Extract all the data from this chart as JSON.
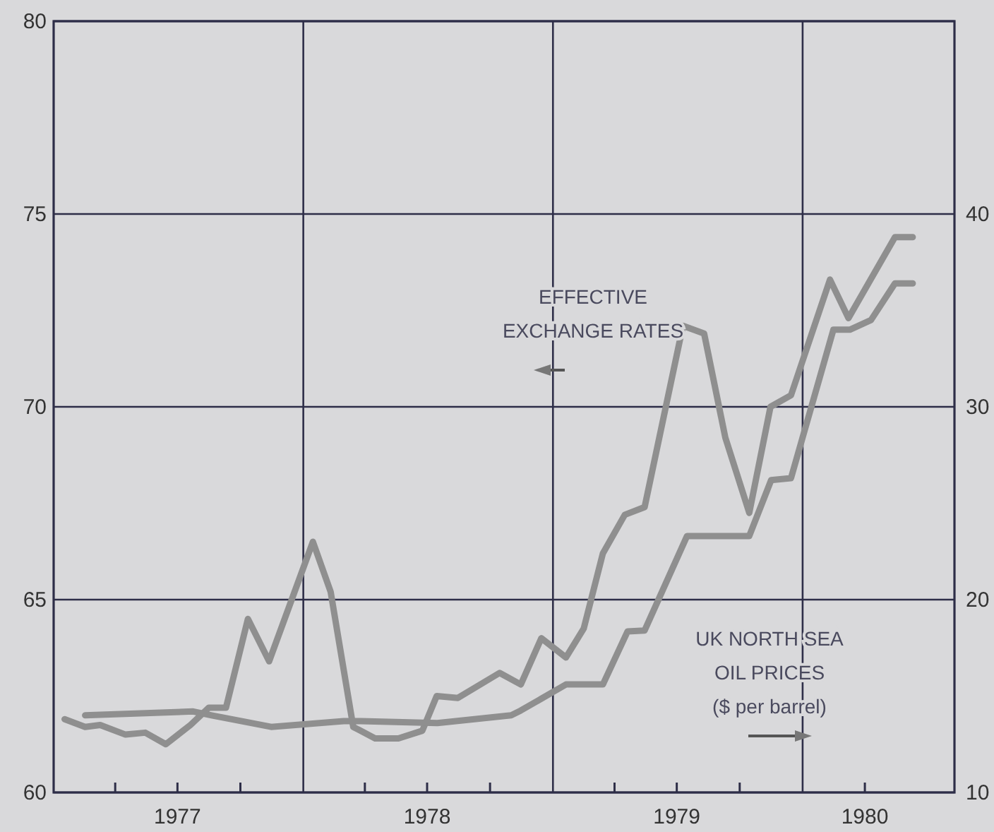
{
  "chart_data": {
    "type": "line",
    "series": [
      {
        "name": "EFFECTIVE\nEXCHANGE RATES",
        "color": "#8f8f8f",
        "axis": "y",
        "x": [
          "1977-01-17",
          "1977-02-16",
          "1977-03-10",
          "1977-04-16",
          "1977-05-15",
          "1977-06-14",
          "1977-07-20",
          "1977-08-16",
          "1977-09-10",
          "1977-10-12",
          "1977-11-12",
          "1978-01-15",
          "1978-02-10",
          "1978-03-15",
          "1978-04-16",
          "1978-05-20",
          "1978-06-24",
          "1978-07-15",
          "1978-08-15",
          "1978-10-15",
          "1978-11-15",
          "1978-12-15",
          "1979-01-20",
          "1979-02-15",
          "1979-03-15",
          "1979-04-16",
          "1979-05-15",
          "1979-07-10",
          "1979-08-10",
          "1979-09-10",
          "1979-10-15",
          "1979-11-15",
          "1979-12-15",
          "1980-02-10",
          "1980-03-08",
          "1980-05-15",
          "1980-06-10"
        ],
        "values": [
          61.9,
          61.7,
          61.75,
          61.5,
          61.55,
          61.25,
          61.75,
          62.2,
          62.2,
          64.5,
          63.4,
          66.5,
          65.2,
          61.7,
          61.4,
          61.4,
          61.6,
          62.5,
          62.45,
          63.1,
          62.8,
          64.0,
          63.5,
          64.25,
          66.2,
          67.2,
          67.4,
          72.1,
          71.9,
          69.2,
          67.25,
          70.0,
          70.3,
          73.3,
          72.3,
          74.4,
          74.4
        ]
      },
      {
        "name": "UK NORTH SEA\nOIL PRICES\n($ per barrel)",
        "color": "#8f8f8f",
        "axis": "y2",
        "x": [
          "1977-02-16",
          "1977-07-24",
          "1977-08-20",
          "1977-11-15",
          "1978-03-01",
          "1978-03-26",
          "1978-07-16",
          "1978-11-01",
          "1978-11-15",
          "1979-01-20",
          "1979-03-15",
          "1979-04-20",
          "1979-05-15",
          "1979-07-16",
          "1979-10-15",
          "1979-11-16",
          "1979-12-15",
          "1980-02-15",
          "1980-03-10",
          "1980-04-10",
          "1980-05-15",
          "1980-06-10"
        ],
        "values": [
          14.0,
          14.2,
          14.0,
          13.4,
          13.7,
          13.7,
          13.6,
          14.0,
          14.25,
          15.6,
          15.6,
          18.35,
          18.4,
          23.3,
          23.3,
          26.2,
          26.3,
          34.0,
          34.0,
          34.5,
          36.4,
          36.4
        ]
      }
    ],
    "xlim": [
      "1977-01-01",
      "1980-08-10"
    ],
    "xticks": [
      {
        "value": "1977-04-01",
        "label": null
      },
      {
        "value": "1977-07-01",
        "label": "1977"
      },
      {
        "value": "1977-10-01",
        "label": null
      },
      {
        "value": "1978-04-01",
        "label": null
      },
      {
        "value": "1978-07-01",
        "label": "1978"
      },
      {
        "value": "1978-10-01",
        "label": null
      },
      {
        "value": "1979-04-01",
        "label": null
      },
      {
        "value": "1979-07-01",
        "label": "1979"
      },
      {
        "value": "1979-10-01",
        "label": null
      },
      {
        "value": "1980-04-01",
        "label": "1980"
      }
    ],
    "ylim": [
      60,
      80
    ],
    "yticks": [
      60,
      65,
      70,
      75,
      80
    ],
    "y2lim": [
      10,
      50
    ],
    "y2ticks": [
      10,
      20,
      30,
      40
    ],
    "ref_lines": [
      {
        "axis": "x",
        "value": "1978-01-01",
        "color": "#2e2e48"
      },
      {
        "axis": "x",
        "value": "1979-01-01",
        "color": "#2e2e48"
      },
      {
        "axis": "x",
        "value": "1980-01-01",
        "color": "#2e2e48"
      }
    ],
    "grid": "y"
  }
}
